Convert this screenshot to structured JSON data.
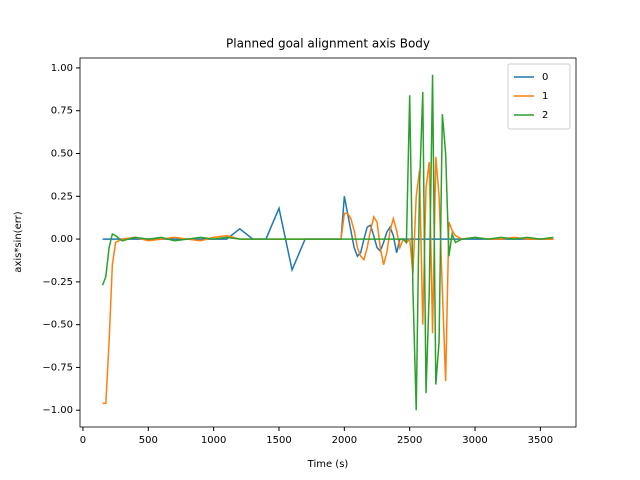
{
  "chart_data": {
    "type": "line",
    "title": "Planned goal alignment axis Body",
    "xlabel": "Time (s)",
    "ylabel": "axis*sin(err)",
    "x": [
      150,
      175,
      200,
      225,
      250,
      300,
      400,
      500,
      600,
      700,
      800,
      900,
      1000,
      1100,
      1200,
      1300,
      1400,
      1500,
      1600,
      1700,
      1800,
      1900,
      1950,
      1975,
      2000,
      2025,
      2050,
      2075,
      2100,
      2125,
      2150,
      2175,
      2200,
      2225,
      2250,
      2275,
      2300,
      2325,
      2350,
      2375,
      2400,
      2425,
      2450,
      2475,
      2500,
      2525,
      2550,
      2575,
      2600,
      2625,
      2650,
      2675,
      2700,
      2725,
      2750,
      2775,
      2800,
      2825,
      2850,
      2900,
      3000,
      3100,
      3200,
      3300,
      3400,
      3500,
      3600
    ],
    "series": [
      {
        "name": "0",
        "color": "#1f77b4",
        "values": [
          0,
          0,
          0,
          0,
          0,
          0,
          0,
          0,
          0,
          0,
          0,
          0,
          0,
          0,
          0.06,
          0,
          0,
          0.18,
          -0.18,
          0,
          0,
          0,
          0,
          0,
          0.25,
          0.15,
          0.05,
          -0.05,
          -0.1,
          -0.08,
          0,
          0.07,
          0.08,
          0.02,
          -0.05,
          -0.07,
          -0.02,
          0.04,
          0.07,
          0.02,
          -0.08,
          0,
          0,
          0,
          0,
          0,
          0,
          0,
          0,
          0,
          0,
          0,
          0,
          0,
          0,
          0,
          0,
          0,
          0,
          0,
          0,
          0,
          0,
          0,
          0,
          0,
          0
        ]
      },
      {
        "name": "1",
        "color": "#ff7f0e",
        "values": [
          -0.96,
          -0.96,
          -0.6,
          -0.15,
          -0.02,
          0,
          0.01,
          -0.01,
          0,
          0.01,
          0,
          -0.01,
          0.01,
          0.02,
          0,
          0,
          0,
          0,
          0,
          0,
          0,
          0,
          0,
          0,
          0.15,
          0.15,
          0.12,
          0.05,
          -0.05,
          -0.1,
          -0.12,
          -0.05,
          0.05,
          0.13,
          0.1,
          -0.05,
          -0.15,
          -0.08,
          0.05,
          0.12,
          0.05,
          -0.05,
          0,
          -0.02,
          0,
          -0.2,
          0.25,
          0.4,
          -0.5,
          0.3,
          0.45,
          -0.55,
          0.48,
          0.25,
          -0.3,
          -0.83,
          0.1,
          0.05,
          0.02,
          0,
          0.01,
          0,
          0,
          0.01,
          0,
          0,
          0
        ]
      },
      {
        "name": "2",
        "color": "#2ca02c",
        "values": [
          -0.27,
          -0.22,
          -0.05,
          0.03,
          0.02,
          -0.01,
          0.01,
          0,
          0.01,
          -0.01,
          0,
          0.01,
          0,
          0.01,
          0,
          0,
          0,
          0,
          0,
          0,
          0,
          0,
          0,
          0,
          0,
          0,
          0,
          0,
          0,
          0,
          0,
          0,
          0,
          0,
          0,
          0,
          0,
          0,
          0,
          0,
          0,
          0,
          0,
          -0.02,
          0.84,
          -0.3,
          -1.0,
          0.3,
          0.86,
          -0.9,
          -0.3,
          0.96,
          -0.85,
          -0.6,
          0.73,
          0.5,
          -0.1,
          0.03,
          -0.02,
          0,
          0.01,
          0,
          0.01,
          0,
          0.01,
          0,
          0.01
        ]
      }
    ],
    "xlim": [
      -22.5,
      3772.5
    ],
    "xticks": [
      0,
      500,
      1000,
      1500,
      2000,
      2500,
      3000,
      3500
    ],
    "ylim": [
      -1.098,
      1.058
    ],
    "yticks": [
      {
        "value": -1,
        "label": "−1.00"
      },
      {
        "value": -0.75,
        "label": "−0.75"
      },
      {
        "value": -0.5,
        "label": "−0.50"
      },
      {
        "value": -0.25,
        "label": "−0.25"
      },
      {
        "value": 0,
        "label": "0.00"
      },
      {
        "value": 0.25,
        "label": "0.25"
      },
      {
        "value": 0.5,
        "label": "0.50"
      },
      {
        "value": 0.75,
        "label": "0.75"
      },
      {
        "value": 1,
        "label": "1.00"
      }
    ],
    "legend": "upper right"
  }
}
